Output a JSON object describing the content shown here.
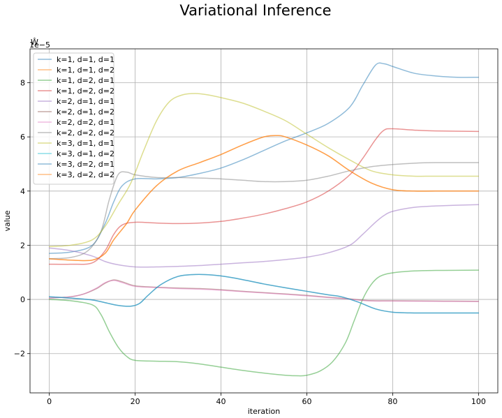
{
  "chart_data": {
    "type": "line",
    "title": "Variational Inference",
    "xlabel": "iteration",
    "ylabel": "value",
    "axis_label_top": "Ŵ",
    "offset_text": "1e−5",
    "xlim": [
      -4.5,
      104.5
    ],
    "ylim": [
      -3.45,
      9.25
    ],
    "xticks": [
      0,
      20,
      40,
      60,
      80,
      100
    ],
    "xtick_labels": [
      "0",
      "20",
      "40",
      "60",
      "80",
      "100"
    ],
    "yticks": [
      -2,
      0,
      2,
      4,
      6,
      8
    ],
    "ytick_labels": [
      "−2",
      "0",
      "2",
      "4",
      "6",
      "8"
    ],
    "grid": true,
    "legend_position": "top-left",
    "line_alpha": 0.5,
    "series": [
      {
        "name": "k=1, d=1, d=1",
        "color": "#1f77b4",
        "points": [
          [
            0,
            1.7
          ],
          [
            5,
            1.75
          ],
          [
            10,
            2.0
          ],
          [
            13,
            2.8
          ],
          [
            15,
            3.6
          ],
          [
            17,
            4.2
          ],
          [
            20,
            4.45
          ],
          [
            25,
            4.45
          ],
          [
            30,
            4.5
          ],
          [
            35,
            4.65
          ],
          [
            40,
            4.85
          ],
          [
            45,
            5.15
          ],
          [
            50,
            5.5
          ],
          [
            55,
            5.85
          ],
          [
            60,
            6.15
          ],
          [
            65,
            6.5
          ],
          [
            70,
            7.1
          ],
          [
            73,
            7.9
          ],
          [
            76,
            8.65
          ],
          [
            78,
            8.7
          ],
          [
            80,
            8.6
          ],
          [
            85,
            8.35
          ],
          [
            90,
            8.25
          ],
          [
            95,
            8.2
          ],
          [
            100,
            8.2
          ]
        ]
      },
      {
        "name": "k=1, d=1, d=2",
        "color": "#ff7f0e",
        "points": [
          [
            0,
            1.5
          ],
          [
            5,
            1.45
          ],
          [
            10,
            1.45
          ],
          [
            13,
            1.7
          ],
          [
            15,
            2.2
          ],
          [
            18,
            2.8
          ],
          [
            20,
            3.3
          ],
          [
            25,
            4.2
          ],
          [
            30,
            4.75
          ],
          [
            35,
            5.05
          ],
          [
            40,
            5.35
          ],
          [
            45,
            5.7
          ],
          [
            50,
            6.0
          ],
          [
            53,
            6.05
          ],
          [
            55,
            6.0
          ],
          [
            60,
            5.7
          ],
          [
            65,
            5.3
          ],
          [
            70,
            4.75
          ],
          [
            75,
            4.3
          ],
          [
            80,
            4.05
          ],
          [
            85,
            4.0
          ],
          [
            90,
            4.0
          ],
          [
            100,
            4.0
          ]
        ]
      },
      {
        "name": "k=1, d=2, d=1",
        "color": "#2ca02c",
        "points": [
          [
            0,
            0.0
          ],
          [
            5,
            -0.05
          ],
          [
            10,
            -0.2
          ],
          [
            12,
            -0.55
          ],
          [
            14,
            -1.2
          ],
          [
            16,
            -1.75
          ],
          [
            18,
            -2.1
          ],
          [
            20,
            -2.25
          ],
          [
            25,
            -2.28
          ],
          [
            30,
            -2.3
          ],
          [
            35,
            -2.38
          ],
          [
            40,
            -2.5
          ],
          [
            45,
            -2.62
          ],
          [
            50,
            -2.72
          ],
          [
            55,
            -2.8
          ],
          [
            58,
            -2.82
          ],
          [
            60,
            -2.8
          ],
          [
            63,
            -2.65
          ],
          [
            66,
            -2.3
          ],
          [
            69,
            -1.6
          ],
          [
            71,
            -0.8
          ],
          [
            73,
            0.0
          ],
          [
            75,
            0.55
          ],
          [
            77,
            0.85
          ],
          [
            80,
            0.98
          ],
          [
            85,
            1.05
          ],
          [
            90,
            1.07
          ],
          [
            100,
            1.08
          ]
        ]
      },
      {
        "name": "k=1, d=2, d=2",
        "color": "#d62728",
        "points": [
          [
            0,
            1.3
          ],
          [
            5,
            1.3
          ],
          [
            10,
            1.35
          ],
          [
            13,
            1.8
          ],
          [
            15,
            2.4
          ],
          [
            17,
            2.75
          ],
          [
            20,
            2.85
          ],
          [
            25,
            2.82
          ],
          [
            30,
            2.8
          ],
          [
            35,
            2.82
          ],
          [
            40,
            2.88
          ],
          [
            45,
            3.0
          ],
          [
            50,
            3.15
          ],
          [
            55,
            3.35
          ],
          [
            60,
            3.6
          ],
          [
            65,
            4.0
          ],
          [
            70,
            4.6
          ],
          [
            73,
            5.2
          ],
          [
            76,
            5.9
          ],
          [
            78,
            6.25
          ],
          [
            80,
            6.3
          ],
          [
            85,
            6.25
          ],
          [
            90,
            6.22
          ],
          [
            100,
            6.2
          ]
        ]
      },
      {
        "name": "k=2, d=1, d=1",
        "color": "#9467bd",
        "points": [
          [
            0,
            1.9
          ],
          [
            5,
            1.8
          ],
          [
            10,
            1.6
          ],
          [
            13,
            1.4
          ],
          [
            16,
            1.28
          ],
          [
            20,
            1.2
          ],
          [
            25,
            1.2
          ],
          [
            30,
            1.22
          ],
          [
            35,
            1.25
          ],
          [
            40,
            1.3
          ],
          [
            45,
            1.35
          ],
          [
            50,
            1.4
          ],
          [
            55,
            1.47
          ],
          [
            60,
            1.56
          ],
          [
            65,
            1.72
          ],
          [
            70,
            2.0
          ],
          [
            73,
            2.4
          ],
          [
            76,
            2.85
          ],
          [
            78,
            3.1
          ],
          [
            80,
            3.25
          ],
          [
            85,
            3.4
          ],
          [
            90,
            3.45
          ],
          [
            100,
            3.5
          ]
        ]
      },
      {
        "name": "k=2, d=1, d=2",
        "color": "#8c564b",
        "points": [
          [
            0,
            0.05
          ],
          [
            5,
            0.1
          ],
          [
            8,
            0.2
          ],
          [
            11,
            0.4
          ],
          [
            13,
            0.6
          ],
          [
            15,
            0.72
          ],
          [
            17,
            0.65
          ],
          [
            20,
            0.5
          ],
          [
            25,
            0.45
          ],
          [
            30,
            0.42
          ],
          [
            35,
            0.4
          ],
          [
            40,
            0.36
          ],
          [
            45,
            0.3
          ],
          [
            50,
            0.25
          ],
          [
            55,
            0.2
          ],
          [
            60,
            0.15
          ],
          [
            65,
            0.08
          ],
          [
            70,
            0.02
          ],
          [
            73,
            -0.03
          ],
          [
            76,
            -0.05
          ],
          [
            80,
            -0.05
          ],
          [
            90,
            -0.06
          ],
          [
            100,
            -0.07
          ]
        ]
      },
      {
        "name": "k=2, d=2, d=1",
        "color": "#e377c2",
        "points": [
          [
            0,
            0.05
          ],
          [
            5,
            0.1
          ],
          [
            8,
            0.2
          ],
          [
            11,
            0.42
          ],
          [
            13,
            0.62
          ],
          [
            15,
            0.7
          ],
          [
            17,
            0.62
          ],
          [
            20,
            0.48
          ],
          [
            25,
            0.44
          ],
          [
            30,
            0.4
          ],
          [
            35,
            0.38
          ],
          [
            40,
            0.34
          ],
          [
            45,
            0.29
          ],
          [
            50,
            0.24
          ],
          [
            55,
            0.19
          ],
          [
            60,
            0.13
          ],
          [
            65,
            0.07
          ],
          [
            70,
            0.01
          ],
          [
            73,
            -0.04
          ],
          [
            76,
            -0.06
          ],
          [
            80,
            -0.06
          ],
          [
            90,
            -0.07
          ],
          [
            100,
            -0.08
          ]
        ]
      },
      {
        "name": "k=2, d=2, d=2",
        "color": "#7f7f7f",
        "points": [
          [
            0,
            1.5
          ],
          [
            5,
            1.55
          ],
          [
            9,
            1.8
          ],
          [
            12,
            2.5
          ],
          [
            14,
            3.7
          ],
          [
            16,
            4.6
          ],
          [
            18,
            4.7
          ],
          [
            20,
            4.6
          ],
          [
            25,
            4.5
          ],
          [
            30,
            4.5
          ],
          [
            35,
            4.48
          ],
          [
            40,
            4.45
          ],
          [
            45,
            4.4
          ],
          [
            50,
            4.35
          ],
          [
            55,
            4.35
          ],
          [
            60,
            4.4
          ],
          [
            65,
            4.55
          ],
          [
            70,
            4.75
          ],
          [
            75,
            4.9
          ],
          [
            80,
            4.98
          ],
          [
            85,
            5.03
          ],
          [
            90,
            5.05
          ],
          [
            100,
            5.05
          ]
        ]
      },
      {
        "name": "k=3, d=1, d=1",
        "color": "#bcbd22",
        "points": [
          [
            0,
            1.95
          ],
          [
            5,
            2.0
          ],
          [
            10,
            2.2
          ],
          [
            13,
            2.7
          ],
          [
            16,
            3.5
          ],
          [
            19,
            4.3
          ],
          [
            22,
            5.5
          ],
          [
            25,
            6.6
          ],
          [
            28,
            7.3
          ],
          [
            31,
            7.55
          ],
          [
            34,
            7.6
          ],
          [
            37,
            7.55
          ],
          [
            40,
            7.45
          ],
          [
            45,
            7.25
          ],
          [
            50,
            6.95
          ],
          [
            55,
            6.6
          ],
          [
            60,
            6.1
          ],
          [
            65,
            5.6
          ],
          [
            70,
            5.15
          ],
          [
            75,
            4.75
          ],
          [
            80,
            4.6
          ],
          [
            85,
            4.55
          ],
          [
            90,
            4.55
          ],
          [
            100,
            4.55
          ]
        ]
      },
      {
        "name": "k=3, d=1, d=2",
        "color": "#17becf",
        "points": [
          [
            0,
            0.1
          ],
          [
            5,
            0.05
          ],
          [
            10,
            -0.02
          ],
          [
            13,
            -0.12
          ],
          [
            16,
            -0.22
          ],
          [
            19,
            -0.25
          ],
          [
            21,
            -0.15
          ],
          [
            23,
            0.15
          ],
          [
            26,
            0.55
          ],
          [
            30,
            0.85
          ],
          [
            34,
            0.92
          ],
          [
            38,
            0.9
          ],
          [
            42,
            0.82
          ],
          [
            46,
            0.7
          ],
          [
            50,
            0.57
          ],
          [
            55,
            0.43
          ],
          [
            60,
            0.3
          ],
          [
            65,
            0.17
          ],
          [
            68,
            0.1
          ],
          [
            72,
            -0.1
          ],
          [
            76,
            -0.35
          ],
          [
            80,
            -0.47
          ],
          [
            85,
            -0.5
          ],
          [
            90,
            -0.5
          ],
          [
            100,
            -0.5
          ]
        ]
      },
      {
        "name": "k=3, d=2, d=1",
        "color": "#1f77b4",
        "points": [
          [
            0,
            0.1
          ],
          [
            5,
            0.05
          ],
          [
            10,
            -0.02
          ],
          [
            13,
            -0.12
          ],
          [
            16,
            -0.22
          ],
          [
            19,
            -0.25
          ],
          [
            21,
            -0.15
          ],
          [
            23,
            0.15
          ],
          [
            26,
            0.55
          ],
          [
            30,
            0.85
          ],
          [
            34,
            0.92
          ],
          [
            38,
            0.9
          ],
          [
            42,
            0.82
          ],
          [
            46,
            0.7
          ],
          [
            50,
            0.57
          ],
          [
            55,
            0.43
          ],
          [
            60,
            0.3
          ],
          [
            65,
            0.17
          ],
          [
            68,
            0.1
          ],
          [
            72,
            -0.1
          ],
          [
            76,
            -0.35
          ],
          [
            80,
            -0.47
          ],
          [
            85,
            -0.5
          ],
          [
            90,
            -0.5
          ],
          [
            100,
            -0.5
          ]
        ]
      },
      {
        "name": "k=3, d=2, d=2",
        "color": "#ff7f0e",
        "points": [
          [
            0,
            1.5
          ],
          [
            5,
            1.45
          ],
          [
            10,
            1.45
          ],
          [
            13,
            1.7
          ],
          [
            15,
            2.2
          ],
          [
            18,
            2.8
          ],
          [
            20,
            3.3
          ],
          [
            25,
            4.2
          ],
          [
            30,
            4.75
          ],
          [
            35,
            5.05
          ],
          [
            40,
            5.35
          ],
          [
            45,
            5.7
          ],
          [
            50,
            6.0
          ],
          [
            53,
            6.05
          ],
          [
            55,
            6.0
          ],
          [
            60,
            5.7
          ],
          [
            65,
            5.3
          ],
          [
            70,
            4.75
          ],
          [
            75,
            4.3
          ],
          [
            80,
            4.05
          ],
          [
            85,
            4.0
          ],
          [
            90,
            4.0
          ],
          [
            100,
            4.0
          ]
        ]
      }
    ]
  }
}
